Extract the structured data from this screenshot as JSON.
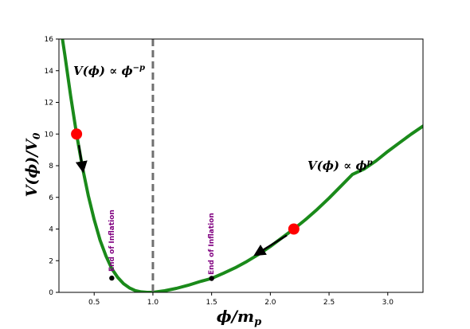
{
  "chart_data": {
    "type": "line",
    "title": "",
    "xlabel": "ϕ/m_p",
    "ylabel": "V(ϕ)/V₀",
    "xlim": [
      0.2,
      3.3
    ],
    "ylim": [
      0,
      16
    ],
    "xticks": [
      0.5,
      1.0,
      1.5,
      2.0,
      2.5,
      3.0
    ],
    "xtick_labels": [
      "0.5",
      "1.0",
      "1.5",
      "2.0",
      "2.5",
      "3.0"
    ],
    "yticks": [
      0,
      2,
      4,
      6,
      8,
      10,
      12,
      14,
      16
    ],
    "ytick_labels": [
      "0",
      "2",
      "4",
      "6",
      "8",
      "10",
      "12",
      "14",
      "16"
    ],
    "grid": false,
    "curve": {
      "color": "#1a8a1a",
      "x": [
        0.22,
        0.25,
        0.3,
        0.35,
        0.4,
        0.45,
        0.5,
        0.55,
        0.6,
        0.65,
        0.7,
        0.75,
        0.8,
        0.85,
        0.9,
        0.95,
        1.0,
        1.1,
        1.2,
        1.3,
        1.4,
        1.5,
        1.6,
        1.7,
        1.8,
        1.9,
        2.0,
        2.1,
        2.2,
        2.3,
        2.4,
        2.5,
        2.6,
        2.7,
        2.8,
        2.9,
        3.0,
        3.1,
        3.2,
        3.3
      ],
      "y": [
        16.5,
        15.0,
        12.4,
        10.0,
        7.9,
        6.1,
        4.6,
        3.3,
        2.3,
        1.5,
        0.95,
        0.55,
        0.28,
        0.11,
        0.03,
        0.0,
        0.0,
        0.1,
        0.25,
        0.45,
        0.68,
        0.88,
        1.2,
        1.55,
        1.95,
        2.4,
        2.9,
        3.45,
        4.0,
        4.6,
        5.25,
        5.95,
        6.7,
        7.45,
        7.8,
        8.3,
        8.9,
        9.45,
        10.0,
        10.5
      ]
    },
    "vline": {
      "x": 1.0,
      "color": "#707070",
      "style": "dashed"
    },
    "red_points": [
      {
        "x": 0.35,
        "y": 10.0
      },
      {
        "x": 2.2,
        "y": 4.0
      }
    ],
    "arrows": [
      {
        "from": [
          0.37,
          9.3
        ],
        "to": [
          0.4,
          7.9
        ]
      },
      {
        "from": [
          2.14,
          3.6
        ],
        "to": [
          1.9,
          2.5
        ]
      }
    ],
    "end_points": [
      {
        "x": 0.65,
        "y": 0.9
      },
      {
        "x": 1.5,
        "y": 0.88
      }
    ],
    "end_label": "End of Inflation",
    "annotations": {
      "left": "V(ϕ) ∝ ϕ",
      "left_sup": "−p",
      "right": "V(ϕ) ∝ ϕ",
      "right_sup": "p"
    },
    "colors": {
      "curve": "#1a8a1a",
      "point": "#ff0000",
      "end_label": "#800080",
      "vline": "#707070"
    }
  }
}
